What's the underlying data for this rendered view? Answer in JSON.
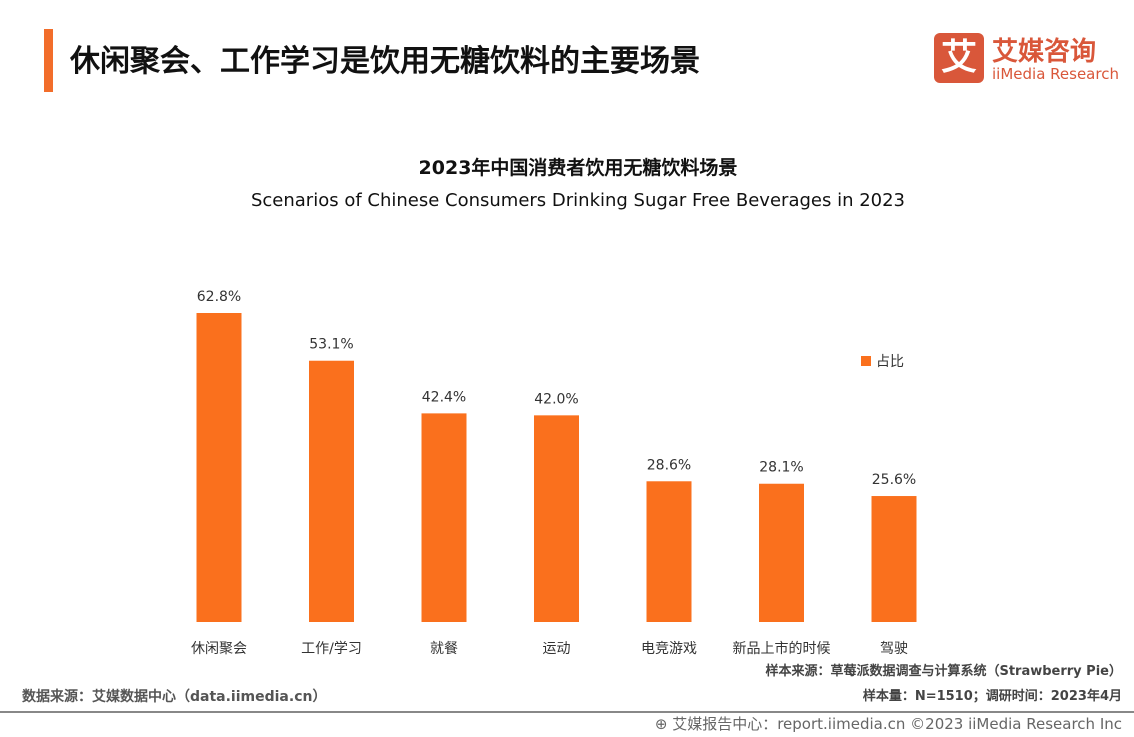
{
  "header": {
    "title": "休闲聚会、工作学习是饮用无糖饮料的主要场景",
    "accent_color": "#f26d2a"
  },
  "logo": {
    "mark": "艾",
    "name_cn": "艾媒咨询",
    "name_en": "iiMedia Research",
    "color": "#d9573a"
  },
  "chart_data": {
    "type": "bar",
    "title": "2023年中国消费者饮用无糖饮料场景",
    "subtitle": "Scenarios of Chinese Consumers Drinking Sugar Free Beverages in 2023",
    "categories": [
      "休闲聚会",
      "工作/学习",
      "就餐",
      "运动",
      "电竞游戏",
      "新品上市的时候",
      "驾驶"
    ],
    "series": [
      {
        "name": "占比",
        "values": [
          62.8,
          53.1,
          42.4,
          42.0,
          28.6,
          28.1,
          25.6
        ],
        "color": "#fa701d"
      }
    ],
    "data_labels": [
      "62.8%",
      "53.1%",
      "42.4%",
      "42.0%",
      "28.6%",
      "28.1%",
      "25.6%"
    ],
    "unit": "%",
    "ylim": [
      0,
      70
    ],
    "grid": false,
    "legend": "right"
  },
  "footer": {
    "data_source": "数据来源：艾媒数据中心（data.iimedia.cn）",
    "sample_source": "样本来源：草莓派数据调查与计算系统（Strawberry Pie）",
    "sample_size": "样本量：N=1510；调研时间：2023年4月",
    "report": "艾媒报告中心：report.iimedia.cn   ©2023  iiMedia Research  Inc",
    "report_icon": "globe-cursor-icon"
  }
}
